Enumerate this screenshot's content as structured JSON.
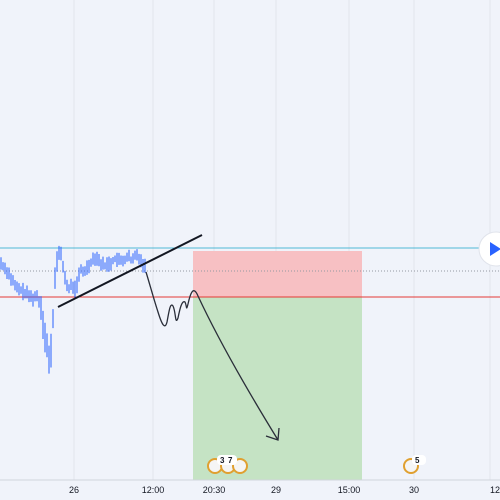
{
  "chart_data": {
    "type": "candlestick",
    "x_tick_labels": [
      "26",
      "12:00",
      "20:30",
      "29",
      "15:00",
      "30",
      "12"
    ],
    "colors": {
      "background": "#f0f3fa",
      "candle_up": "#2962ff",
      "resistance_line": "#4fb8d6",
      "stop_line": "#e53935",
      "stop_zone": "#f7c0c3",
      "target_zone": "#c5e3c4",
      "trendline": "#131722",
      "arrow": "#2a2e39",
      "play_button": "#2962ff"
    },
    "levels": {
      "resistance": "top of range",
      "current_price": "dotted guide",
      "entry_stop": "red line"
    },
    "position": {
      "direction": "short",
      "stop_zone": "red box above entry",
      "target_zone": "green box below entry"
    },
    "events": [
      {
        "label": "3",
        "flags": "us"
      },
      {
        "label": "7",
        "flags": "us"
      },
      {
        "label": "5",
        "flags": "us"
      }
    ],
    "drawings": [
      "rising trendline",
      "projected downward path arrow"
    ],
    "grid": true
  }
}
